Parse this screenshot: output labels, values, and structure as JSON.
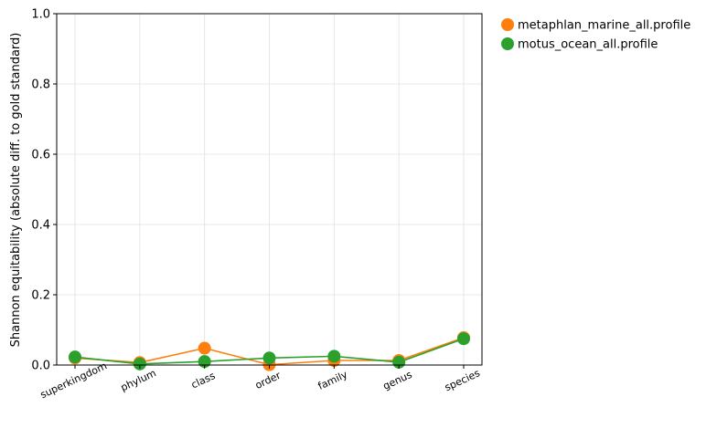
{
  "chart_data": {
    "type": "line",
    "title": "",
    "xlabel": "",
    "ylabel": "Shannon equitability (absolute diff. to gold standard)",
    "categories": [
      "superkingdom",
      "phylum",
      "class",
      "order",
      "family",
      "genus",
      "species"
    ],
    "ylim": [
      0,
      1.0
    ],
    "yticks": [
      "0.0",
      "0.2",
      "0.4",
      "0.6",
      "0.8",
      "1.0"
    ],
    "grid": true,
    "legend_position": "outside-top-right",
    "series": [
      {
        "name": "metaphlan_marine_all.profile",
        "color": "#ff7f0e",
        "values": [
          0.02,
          0.007,
          0.048,
          0.001,
          0.013,
          0.013,
          0.078
        ]
      },
      {
        "name": "motus_ocean_all.profile",
        "color": "#2ca02c",
        "values": [
          0.023,
          0.003,
          0.01,
          0.02,
          0.025,
          0.008,
          0.075
        ]
      }
    ]
  }
}
